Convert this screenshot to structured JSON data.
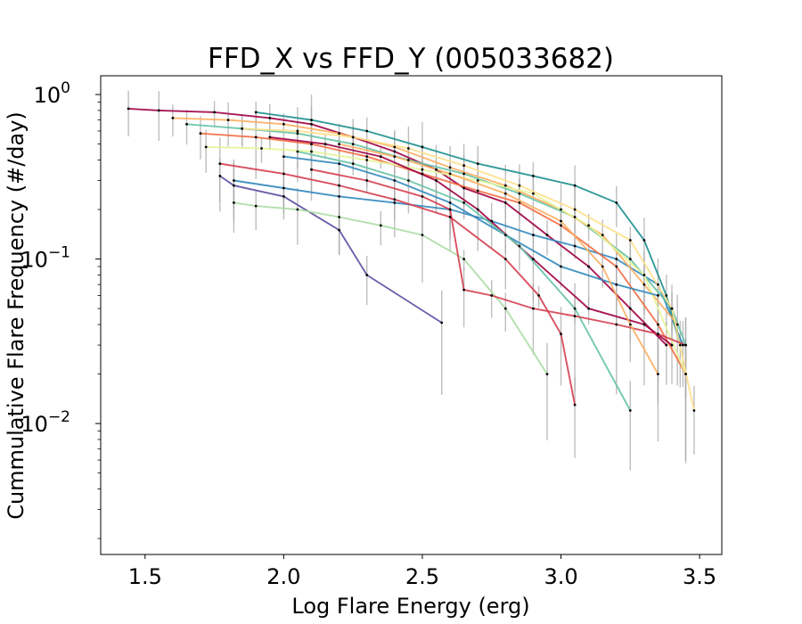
{
  "chart_data": {
    "type": "line",
    "title": "FFD_X vs FFD_Y (005033682)",
    "xlabel": "Log Flare Energy (erg)",
    "ylabel": "Cummulative Flare Frequency (#/day)",
    "xlim": [
      1.34,
      3.58
    ],
    "ylim": [
      0.0016,
      1.3
    ],
    "yscale": "log",
    "grid": false,
    "xticks": [
      {
        "value": 1.5,
        "label": "1.5"
      },
      {
        "value": 2.0,
        "label": "2.0"
      },
      {
        "value": 2.5,
        "label": "2.5"
      },
      {
        "value": 3.0,
        "label": "3.0"
      },
      {
        "value": 3.5,
        "label": "3.5"
      }
    ],
    "yticks": [
      {
        "value": 1.0,
        "base": "10",
        "exp": "0"
      },
      {
        "value": 0.1,
        "base": "10",
        "exp": "−1"
      },
      {
        "value": 0.01,
        "base": "10",
        "exp": "−2"
      }
    ],
    "errorbar_color": "#a9a9a9",
    "marker_color": "#000000",
    "series": [
      {
        "color": "#9e0142",
        "x": [
          1.44,
          1.55,
          1.75,
          1.95,
          2.1,
          2.25,
          2.4,
          2.55,
          2.65,
          2.8,
          2.95,
          3.1,
          3.25,
          3.38
        ],
        "y": [
          0.82,
          0.8,
          0.78,
          0.72,
          0.66,
          0.55,
          0.45,
          0.35,
          0.27,
          0.22,
          0.14,
          0.09,
          0.05,
          0.03
        ]
      },
      {
        "color": "#3288bd",
        "x": [
          1.82,
          2.0,
          2.2,
          2.4,
          2.6,
          2.75,
          2.9,
          3.05,
          3.2,
          3.35,
          3.44
        ],
        "y": [
          0.3,
          0.27,
          0.24,
          0.22,
          0.2,
          0.17,
          0.14,
          0.12,
          0.1,
          0.07,
          0.03
        ]
      },
      {
        "color": "#5e4fa2",
        "x": [
          1.77,
          1.82,
          2.0,
          2.2,
          2.3,
          2.57
        ],
        "y": [
          0.32,
          0.28,
          0.24,
          0.15,
          0.08,
          0.041
        ]
      },
      {
        "color": "#66c2a5",
        "x": [
          1.65,
          1.85,
          2.05,
          2.25,
          2.45,
          2.65,
          2.85,
          3.05,
          3.25,
          3.4,
          3.45
        ],
        "y": [
          0.66,
          0.62,
          0.58,
          0.5,
          0.4,
          0.33,
          0.25,
          0.18,
          0.1,
          0.05,
          0.03
        ]
      },
      {
        "color": "#1f8f8f",
        "x": [
          1.9,
          2.1,
          2.3,
          2.5,
          2.7,
          2.9,
          3.05,
          3.2,
          3.3,
          3.38,
          3.43
        ],
        "y": [
          0.78,
          0.7,
          0.6,
          0.48,
          0.38,
          0.32,
          0.28,
          0.22,
          0.13,
          0.06,
          0.03
        ]
      },
      {
        "color": "#fdae61",
        "x": [
          1.6,
          1.8,
          2.0,
          2.2,
          2.4,
          2.6,
          2.8,
          3.0,
          3.15,
          3.3,
          3.42
        ],
        "y": [
          0.72,
          0.7,
          0.66,
          0.58,
          0.48,
          0.36,
          0.28,
          0.2,
          0.14,
          0.07,
          0.04
        ]
      },
      {
        "color": "#f46d43",
        "x": [
          1.7,
          1.9,
          2.1,
          2.3,
          2.5,
          2.7,
          2.85,
          3.0,
          3.2,
          3.35,
          3.45
        ],
        "y": [
          0.58,
          0.55,
          0.5,
          0.42,
          0.33,
          0.26,
          0.22,
          0.16,
          0.09,
          0.04,
          0.02
        ]
      },
      {
        "color": "#d53e4f",
        "x": [
          1.77,
          2.0,
          2.2,
          2.4,
          2.6,
          2.8,
          2.92,
          3.0,
          3.05
        ],
        "y": [
          0.38,
          0.33,
          0.28,
          0.23,
          0.18,
          0.1,
          0.06,
          0.035,
          0.013
        ]
      },
      {
        "color": "#abdda4",
        "x": [
          1.82,
          1.9,
          2.05,
          2.2,
          2.35,
          2.5,
          2.65,
          2.8,
          2.95
        ],
        "y": [
          0.22,
          0.21,
          0.2,
          0.18,
          0.16,
          0.14,
          0.1,
          0.05,
          0.02
        ]
      },
      {
        "color": "#e6f598",
        "x": [
          1.72,
          1.92,
          2.1,
          2.3,
          2.5,
          2.7,
          2.9,
          3.1,
          3.3,
          3.45
        ],
        "y": [
          0.48,
          0.47,
          0.45,
          0.4,
          0.35,
          0.3,
          0.25,
          0.16,
          0.08,
          0.02
        ]
      },
      {
        "color": "#fee08b",
        "x": [
          1.85,
          2.05,
          2.25,
          2.45,
          2.65,
          2.85,
          3.05,
          3.25,
          3.4,
          3.48
        ],
        "y": [
          0.62,
          0.6,
          0.55,
          0.47,
          0.37,
          0.28,
          0.2,
          0.13,
          0.05,
          0.012
        ]
      },
      {
        "color": "#9e0142",
        "x": [
          1.95,
          2.15,
          2.35,
          2.55,
          2.7,
          2.9,
          3.1,
          3.3,
          3.4
        ],
        "y": [
          0.55,
          0.5,
          0.42,
          0.3,
          0.2,
          0.1,
          0.05,
          0.04,
          0.03
        ]
      },
      {
        "color": "#3288bd",
        "x": [
          2.0,
          2.2,
          2.4,
          2.6,
          2.8,
          3.0,
          3.2,
          3.35
        ],
        "y": [
          0.42,
          0.38,
          0.3,
          0.22,
          0.14,
          0.09,
          0.07,
          0.06
        ]
      },
      {
        "color": "#66c2a5",
        "x": [
          2.05,
          2.25,
          2.45,
          2.65,
          2.85,
          3.05,
          3.25
        ],
        "y": [
          0.45,
          0.38,
          0.3,
          0.22,
          0.12,
          0.05,
          0.012
        ]
      },
      {
        "color": "#d53e4f",
        "x": [
          2.1,
          2.3,
          2.5,
          2.6,
          2.65,
          2.75,
          2.9,
          3.05,
          3.2,
          3.35,
          3.45
        ],
        "y": [
          0.35,
          0.3,
          0.24,
          0.2,
          0.065,
          0.06,
          0.05,
          0.045,
          0.04,
          0.035,
          0.03
        ]
      },
      {
        "color": "#fdae61",
        "x": [
          2.2,
          2.4,
          2.6,
          2.8,
          3.0,
          3.15,
          3.25,
          3.35
        ],
        "y": [
          0.5,
          0.42,
          0.33,
          0.25,
          0.17,
          0.09,
          0.04,
          0.02
        ]
      }
    ]
  }
}
